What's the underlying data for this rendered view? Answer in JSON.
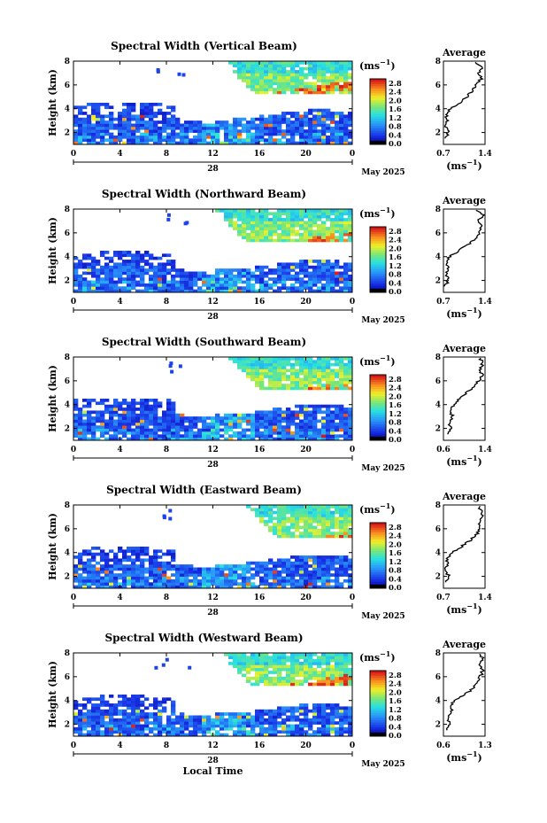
{
  "chart_data": [
    {
      "type": "heatmap",
      "title": "Spectral Width (Vertical Beam)",
      "ylabel": "Height (km)",
      "x_ticks": [
        "0",
        "4",
        "8",
        "12",
        "16",
        "20",
        "0"
      ],
      "x_range": [
        0,
        24
      ],
      "y_ticks": [
        "2",
        "4",
        "6",
        "8"
      ],
      "y_range": [
        1,
        8
      ],
      "date_day": "28",
      "date_label": "May 2025",
      "colorbar": {
        "unit": "(ms",
        "unit_sup": "−1",
        "unit_close": ")",
        "ticks": [
          "0.0",
          "0.4",
          "0.8",
          "1.2",
          "1.6",
          "2.0",
          "2.4",
          "2.8"
        ],
        "range": [
          0,
          2.8
        ]
      },
      "average": {
        "title": "Average",
        "x_ticks": [
          "0.7",
          "1.4"
        ],
        "x_range": [
          0.7,
          1.4
        ],
        "y_ticks": [
          "2",
          "4",
          "6",
          "8"
        ],
        "y_range": [
          1,
          8
        ],
        "xlabel": "(ms",
        "xlabel_sup": "−1",
        "xlabel_close": ")",
        "profile": [
          [
            1.5,
            0.72
          ],
          [
            2.0,
            0.78
          ],
          [
            2.5,
            0.73
          ],
          [
            3.0,
            0.76
          ],
          [
            3.5,
            0.74
          ],
          [
            4.0,
            0.82
          ],
          [
            4.5,
            0.98
          ],
          [
            5.0,
            1.1
          ],
          [
            5.5,
            1.18
          ],
          [
            6.0,
            1.26
          ],
          [
            6.5,
            1.33
          ],
          [
            7.0,
            1.3
          ],
          [
            7.5,
            1.35
          ],
          [
            8.0,
            1.22
          ]
        ]
      }
    },
    {
      "type": "heatmap",
      "title": "Spectral Width (Northward Beam)",
      "ylabel": "Height (km)",
      "x_ticks": [
        "0",
        "4",
        "8",
        "12",
        "16",
        "20",
        "0"
      ],
      "x_range": [
        0,
        24
      ],
      "y_ticks": [
        "2",
        "4",
        "6",
        "8"
      ],
      "y_range": [
        1,
        8
      ],
      "date_day": "28",
      "date_label": "May 2025",
      "colorbar": {
        "unit": "(ms",
        "unit_sup": "−1",
        "unit_close": ")",
        "ticks": [
          "0.0",
          "0.4",
          "0.8",
          "1.2",
          "1.6",
          "2.0",
          "2.4",
          "2.8"
        ],
        "range": [
          0,
          2.8
        ]
      },
      "average": {
        "title": "Average",
        "x_ticks": [
          "0.7",
          "1.4"
        ],
        "x_range": [
          0.7,
          1.4
        ],
        "y_ticks": [
          "2",
          "4",
          "6",
          "8"
        ],
        "y_range": [
          1,
          8
        ],
        "xlabel": "(ms",
        "xlabel_sup": "−1",
        "xlabel_close": ")",
        "profile": [
          [
            1.5,
            0.72
          ],
          [
            2.0,
            0.78
          ],
          [
            2.5,
            0.74
          ],
          [
            3.0,
            0.77
          ],
          [
            3.5,
            0.75
          ],
          [
            4.0,
            0.8
          ],
          [
            4.5,
            0.95
          ],
          [
            5.0,
            1.12
          ],
          [
            5.5,
            1.22
          ],
          [
            6.0,
            1.3
          ],
          [
            6.5,
            1.35
          ],
          [
            7.0,
            1.28
          ],
          [
            7.5,
            1.36
          ],
          [
            8.0,
            1.25
          ]
        ]
      }
    },
    {
      "type": "heatmap",
      "title": "Spectral Width (Southward Beam)",
      "ylabel": "Height (km)",
      "x_ticks": [
        "0",
        "4",
        "8",
        "12",
        "16",
        "20",
        "0"
      ],
      "x_range": [
        0,
        24
      ],
      "y_ticks": [
        "2",
        "4",
        "6",
        "8"
      ],
      "y_range": [
        1,
        8
      ],
      "date_day": "28",
      "date_label": "May 2025",
      "colorbar": {
        "unit": "(ms",
        "unit_sup": "−1",
        "unit_close": ")",
        "ticks": [
          "0.0",
          "0.4",
          "0.8",
          "1.2",
          "1.6",
          "2.0",
          "2.4",
          "2.8"
        ],
        "range": [
          0,
          2.8
        ]
      },
      "average": {
        "title": "Average",
        "x_ticks": [
          "0.6",
          "1.4"
        ],
        "x_range": [
          0.6,
          1.4
        ],
        "y_ticks": [
          "2",
          "4",
          "6",
          "8"
        ],
        "y_range": [
          1,
          8
        ],
        "xlabel": "(ms",
        "xlabel_sup": "−1",
        "xlabel_close": ")",
        "profile": [
          [
            1.5,
            0.68
          ],
          [
            2.0,
            0.75
          ],
          [
            2.5,
            0.7
          ],
          [
            3.0,
            0.78
          ],
          [
            3.5,
            0.72
          ],
          [
            4.0,
            0.8
          ],
          [
            4.5,
            0.92
          ],
          [
            5.0,
            1.05
          ],
          [
            5.5,
            1.18
          ],
          [
            6.0,
            1.28
          ],
          [
            6.5,
            1.34
          ],
          [
            7.0,
            1.3
          ],
          [
            7.5,
            1.36
          ],
          [
            8.0,
            1.28
          ]
        ]
      }
    },
    {
      "type": "heatmap",
      "title": "Spectral Width (Eastward Beam)",
      "ylabel": "Height (km)",
      "x_ticks": [
        "0",
        "4",
        "8",
        "12",
        "16",
        "20",
        "0"
      ],
      "x_range": [
        0,
        24
      ],
      "y_ticks": [
        "2",
        "4",
        "6",
        "8"
      ],
      "y_range": [
        1,
        8
      ],
      "date_day": "28",
      "date_label": "May 2025",
      "colorbar": {
        "unit": "(ms",
        "unit_sup": "−1",
        "unit_close": ")",
        "ticks": [
          "0.0",
          "0.4",
          "0.8",
          "1.2",
          "1.6",
          "2.0",
          "2.4",
          "2.8"
        ],
        "range": [
          0,
          2.8
        ]
      },
      "average": {
        "title": "Average",
        "x_ticks": [
          "0.7",
          "1.4"
        ],
        "x_range": [
          0.7,
          1.4
        ],
        "y_ticks": [
          "2",
          "4",
          "6",
          "8"
        ],
        "y_range": [
          1,
          8
        ],
        "xlabel": "(ms",
        "xlabel_sup": "−1",
        "xlabel_close": ")",
        "profile": [
          [
            1.5,
            0.74
          ],
          [
            2.0,
            0.8
          ],
          [
            2.5,
            0.73
          ],
          [
            3.0,
            0.79
          ],
          [
            3.5,
            0.75
          ],
          [
            4.0,
            0.84
          ],
          [
            4.5,
            1.0
          ],
          [
            5.0,
            1.15
          ],
          [
            5.5,
            1.25
          ],
          [
            6.0,
            1.32
          ],
          [
            6.5,
            1.3
          ],
          [
            7.0,
            1.36
          ],
          [
            7.5,
            1.33
          ],
          [
            8.0,
            1.3
          ]
        ]
      }
    },
    {
      "type": "heatmap",
      "title": "Spectral Width (Westward Beam)",
      "ylabel": "Height (km)",
      "x_ticks": [
        "0",
        "4",
        "8",
        "12",
        "16",
        "20",
        "0"
      ],
      "x_range": [
        0,
        24
      ],
      "y_ticks": [
        "2",
        "4",
        "6",
        "8"
      ],
      "y_range": [
        1,
        8
      ],
      "date_day": "28",
      "date_label": "May 2025",
      "xlabel": "Local Time",
      "colorbar": {
        "unit": "(ms",
        "unit_sup": "−1",
        "unit_close": ")",
        "ticks": [
          "0.0",
          "0.4",
          "0.8",
          "1.2",
          "1.6",
          "2.0",
          "2.4",
          "2.8"
        ],
        "range": [
          0,
          2.8
        ]
      },
      "average": {
        "title": "Average",
        "x_ticks": [
          "0.6",
          "1.3"
        ],
        "x_range": [
          0.6,
          1.3
        ],
        "y_ticks": [
          "2",
          "4",
          "6",
          "8"
        ],
        "y_range": [
          1,
          8
        ],
        "xlabel": "(ms",
        "xlabel_sup": "−1",
        "xlabel_close": ")",
        "profile": [
          [
            1.5,
            0.66
          ],
          [
            2.0,
            0.72
          ],
          [
            2.5,
            0.68
          ],
          [
            3.0,
            0.75
          ],
          [
            3.5,
            0.7
          ],
          [
            4.0,
            0.78
          ],
          [
            4.5,
            0.95
          ],
          [
            5.0,
            1.1
          ],
          [
            5.5,
            1.18
          ],
          [
            6.0,
            1.22
          ],
          [
            6.5,
            1.26
          ],
          [
            7.0,
            1.22
          ],
          [
            7.5,
            1.27
          ],
          [
            8.0,
            1.2
          ]
        ]
      }
    }
  ]
}
